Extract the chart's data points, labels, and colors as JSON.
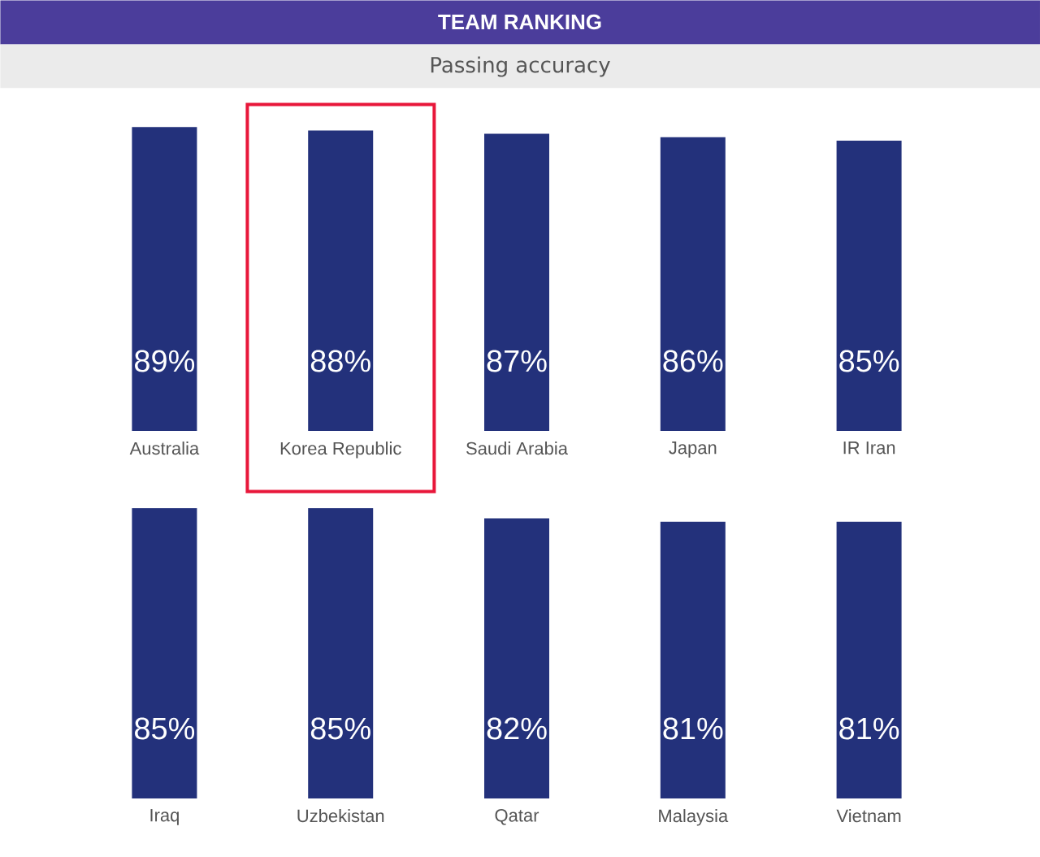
{
  "chart_data": [
    {
      "type": "bar",
      "title": "TEAM RANKING",
      "subtitle": "Passing accuracy",
      "categories": [
        "Australia",
        "Korea Republic",
        "Saudi Arabia",
        "Japan",
        "IR Iran"
      ],
      "values": [
        89,
        88,
        87,
        86,
        85
      ],
      "value_labels": [
        "89%",
        "88%",
        "87%",
        "86%",
        "85%"
      ],
      "color": "#23317b",
      "tick_labels": "x"
    },
    {
      "type": "bar",
      "categories": [
        "Iraq",
        "Uzbekistan",
        "Qatar",
        "Malaysia",
        "Vietnam"
      ],
      "values": [
        85,
        85,
        82,
        81,
        81
      ],
      "value_labels": [
        "85%",
        "85%",
        "82%",
        "81%",
        "81%"
      ],
      "color": "#23317b",
      "tick_labels": "x"
    }
  ]
}
